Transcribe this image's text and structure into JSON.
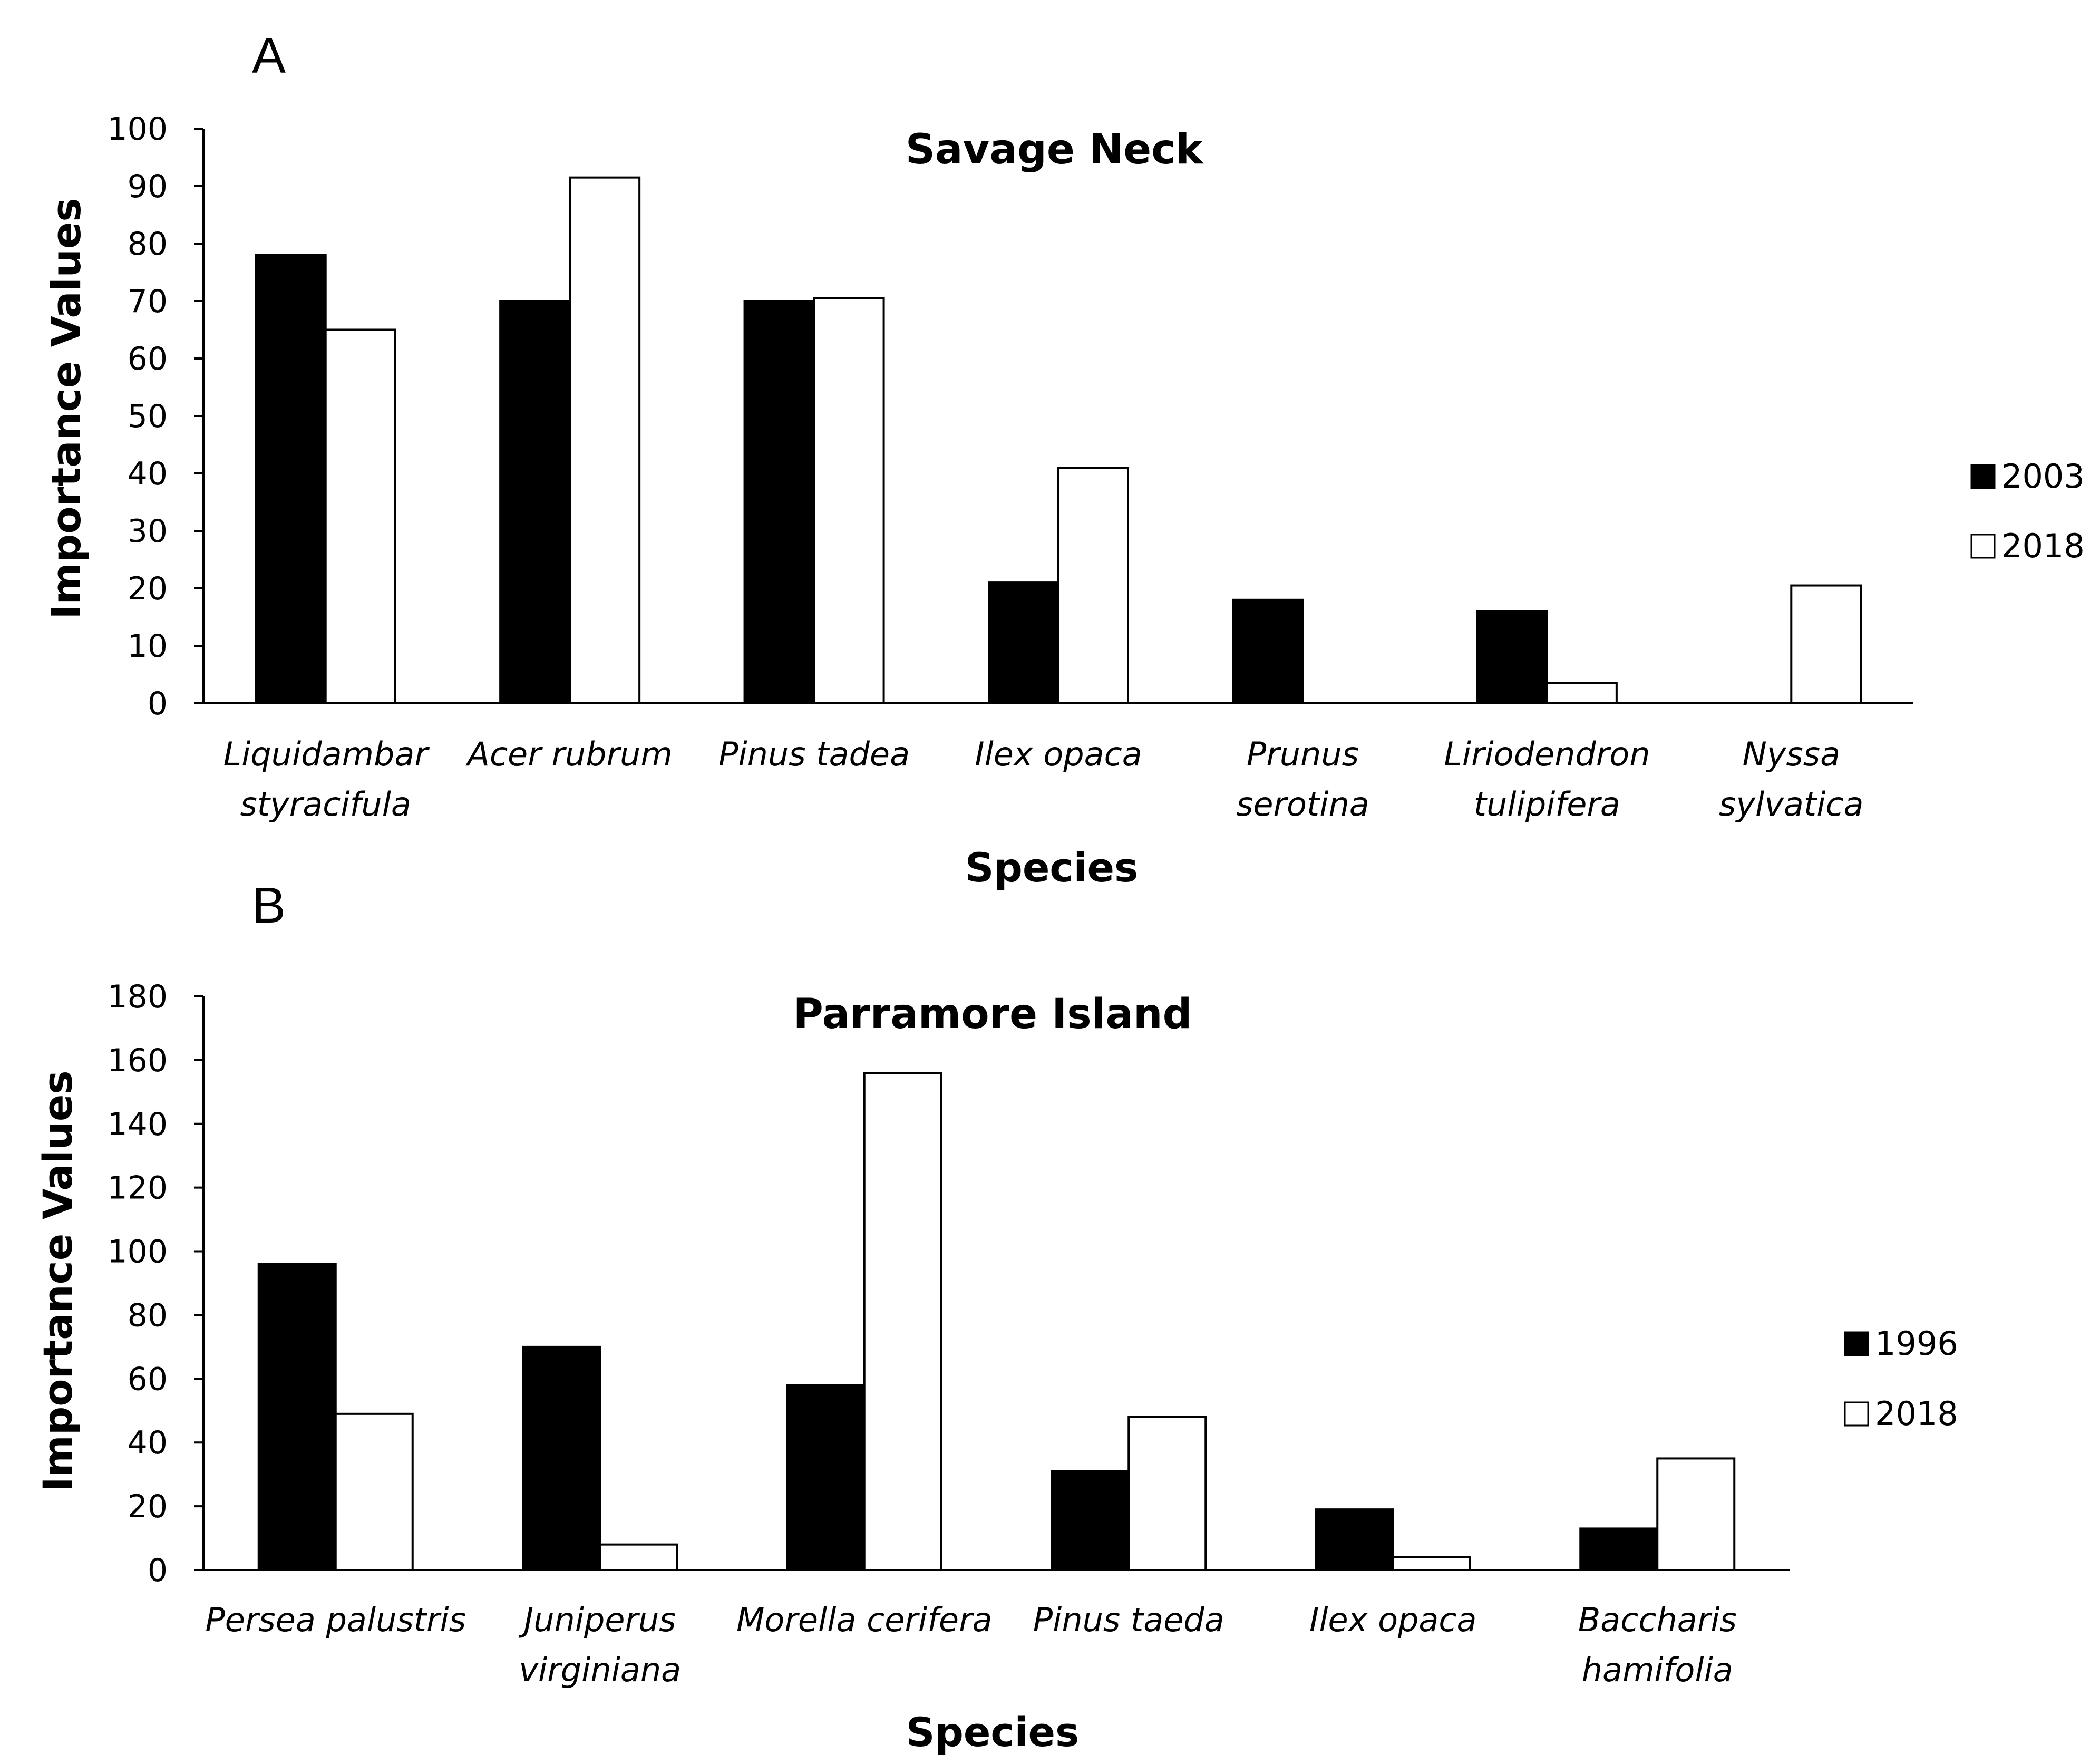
{
  "chart_data": [
    {
      "panel": "A",
      "type": "bar",
      "title": "Savage Neck",
      "xlabel": "Species",
      "ylabel": "Importance Values",
      "ylim": [
        0,
        100
      ],
      "yticks": [
        "0",
        "10",
        "20",
        "30",
        "40",
        "50",
        "60",
        "70",
        "80",
        "90",
        "100"
      ],
      "categories": [
        [
          "Liquidambar",
          "styracifula"
        ],
        [
          "Acer rubrum"
        ],
        [
          "Pinus tadea"
        ],
        [
          "Ilex opaca"
        ],
        [
          "Prunus",
          "serotina"
        ],
        [
          "Liriodendron",
          "tulipifera"
        ],
        [
          "Nyssa",
          "sylvatica"
        ]
      ],
      "series": [
        {
          "name": "2003",
          "color": "#000000",
          "values": [
            78,
            70,
            70,
            21,
            18,
            16,
            0
          ]
        },
        {
          "name": "2018",
          "color": "#ffffff",
          "values": [
            65,
            91.5,
            70.5,
            41,
            0,
            3.5,
            20.5
          ]
        }
      ],
      "legend": "right"
    },
    {
      "panel": "B",
      "type": "bar",
      "title": "Parramore Island",
      "xlabel": "Species",
      "ylabel": "Importance Values",
      "ylim": [
        0,
        180
      ],
      "yticks": [
        "0",
        "20",
        "40",
        "60",
        "80",
        "100",
        "120",
        "140",
        "160",
        "180"
      ],
      "categories": [
        [
          "Persea palustris"
        ],
        [
          "Juniperus",
          "virginiana"
        ],
        [
          "Morella cerifera"
        ],
        [
          "Pinus taeda"
        ],
        [
          "Ilex opaca"
        ],
        [
          "Baccharis",
          "hamifolia"
        ]
      ],
      "series": [
        {
          "name": "1996",
          "color": "#000000",
          "values": [
            96,
            70,
            58,
            31,
            19,
            13
          ]
        },
        {
          "name": "2018",
          "color": "#ffffff",
          "values": [
            49,
            8,
            156,
            48,
            4,
            35
          ]
        }
      ],
      "legend": "right"
    }
  ]
}
